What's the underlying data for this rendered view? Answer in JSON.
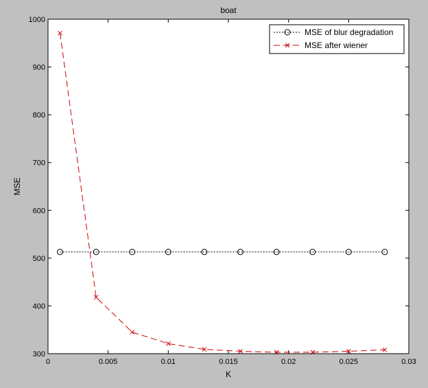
{
  "figure": {
    "background": "#c0c0c0",
    "axes_background": "#ffffff"
  },
  "chart_data": {
    "type": "line",
    "title": "boat",
    "xlabel": "K",
    "ylabel": "MSE",
    "xlim": [
      0,
      0.03
    ],
    "ylim": [
      300,
      1000
    ],
    "x_ticks": [
      0,
      0.005,
      0.01,
      0.015,
      0.02,
      0.025,
      0.03
    ],
    "x_tick_labels": [
      "0",
      "0.005",
      "0.01",
      "0.015",
      "0.02",
      "0.025",
      "0.03"
    ],
    "y_ticks": [
      300,
      400,
      500,
      600,
      700,
      800,
      900,
      1000
    ],
    "y_tick_labels": [
      "300",
      "400",
      "500",
      "600",
      "700",
      "800",
      "900",
      "1000"
    ],
    "grid": false,
    "legend_position": "top-right",
    "x": [
      0.001,
      0.004,
      0.007,
      0.01,
      0.013,
      0.016,
      0.019,
      0.022,
      0.025,
      0.028
    ],
    "series": [
      {
        "name": "MSE of blur degradation",
        "color": "#000000",
        "line_style": "dotted",
        "marker": "circle",
        "values": [
          513,
          513,
          513,
          513,
          513,
          513,
          513,
          513,
          513,
          513
        ]
      },
      {
        "name": "MSE after wiener",
        "color": "#cc0000",
        "line_style": "dashed",
        "marker": "x",
        "values": [
          971,
          418,
          345,
          321,
          309,
          305,
          303,
          303,
          305,
          308
        ]
      }
    ]
  }
}
